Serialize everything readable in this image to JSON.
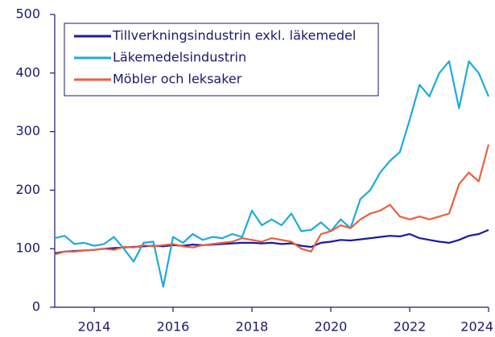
{
  "chart_data": {
    "type": "line",
    "x": [
      2013,
      2013.25,
      2013.5,
      2013.75,
      2014,
      2014.25,
      2014.5,
      2014.75,
      2015,
      2015.25,
      2015.5,
      2015.75,
      2016,
      2016.25,
      2016.5,
      2016.75,
      2017,
      2017.25,
      2017.5,
      2017.75,
      2018,
      2018.25,
      2018.5,
      2018.75,
      2019,
      2019.25,
      2019.5,
      2019.75,
      2020,
      2020.25,
      2020.5,
      2020.75,
      2021,
      2021.25,
      2021.5,
      2021.75,
      2022,
      2022.25,
      2022.5,
      2022.75,
      2023,
      2023.25,
      2023.5,
      2023.75,
      2024
    ],
    "series": [
      {
        "name": "Tillverkningsindustrin exkl. läkemedel",
        "color": "#1a1aa0",
        "values": [
          92,
          95,
          96,
          97,
          98,
          100,
          101,
          102,
          103,
          104,
          105,
          104,
          106,
          105,
          107,
          106,
          107,
          108,
          109,
          110,
          110,
          109,
          110,
          108,
          109,
          105,
          103,
          110,
          112,
          115,
          114,
          116,
          118,
          120,
          122,
          121,
          125,
          118,
          115,
          112,
          110,
          115,
          122,
          125,
          132
        ]
      },
      {
        "name": "Läkemedelsindustrin",
        "color": "#1eaadc",
        "values": [
          118,
          122,
          108,
          110,
          105,
          108,
          120,
          100,
          78,
          110,
          112,
          35,
          120,
          110,
          125,
          115,
          120,
          118,
          125,
          120,
          165,
          140,
          150,
          140,
          160,
          130,
          132,
          145,
          130,
          150,
          135,
          185,
          200,
          230,
          250,
          265,
          320,
          380,
          360,
          400,
          420,
          340,
          420,
          400,
          360
        ]
      },
      {
        "name": "Möbler och leksaker",
        "color": "#e8603c",
        "values": [
          90,
          95,
          95,
          97,
          98,
          100,
          98,
          103,
          102,
          106,
          104,
          106,
          108,
          104,
          102,
          106,
          108,
          110,
          112,
          118,
          115,
          112,
          118,
          115,
          112,
          100,
          95,
          125,
          130,
          140,
          135,
          150,
          160,
          165,
          175,
          155,
          150,
          155,
          150,
          155,
          160,
          210,
          230,
          215,
          278
        ]
      }
    ],
    "xlim": [
      2013,
      2024
    ],
    "xticks": [
      2014,
      2016,
      2018,
      2020,
      2022,
      2024
    ],
    "ylim": [
      0,
      500
    ],
    "yticks": [
      0,
      100,
      200,
      300,
      400,
      500
    ]
  }
}
